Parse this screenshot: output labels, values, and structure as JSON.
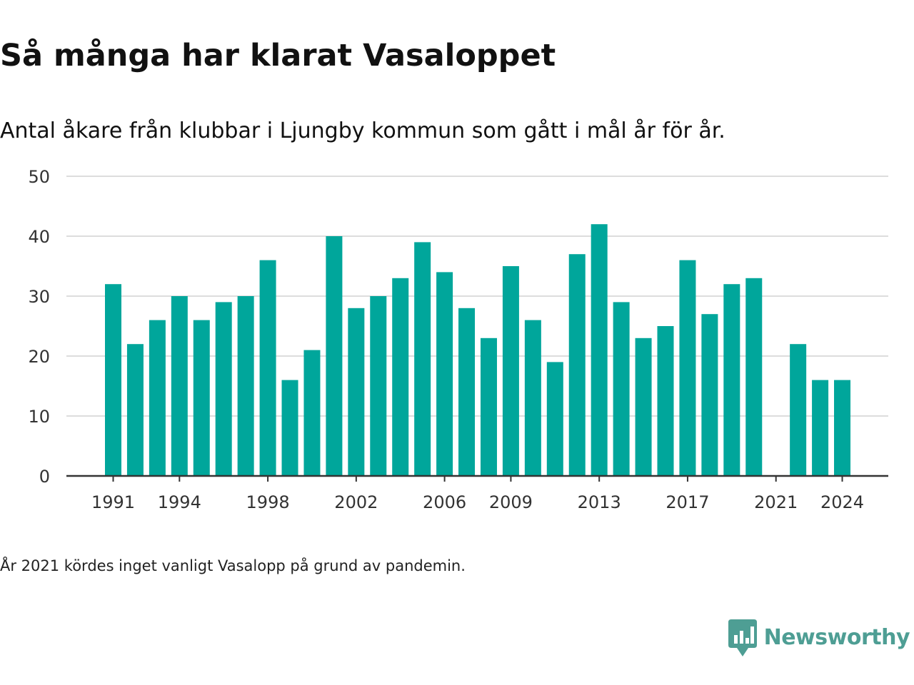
{
  "title": "Så många har klarat Vasaloppet",
  "subtitle": "Antal åkare från klubbar i Ljungby kommun som gått i mål år för år.",
  "footnote": "År 2021 kördes inget vanligt Vasalopp på grund av pandemin.",
  "brand": {
    "name": "Newsworthy",
    "icon": "newsworthy-logo",
    "color": "#4e9e94"
  },
  "colors": {
    "bar": "#00a69b",
    "grid": "#dddddd",
    "axis": "#333333",
    "text": "#333333"
  },
  "chart_data": {
    "type": "bar",
    "title": "",
    "xlabel": "",
    "ylabel": "",
    "ylim": [
      0,
      50
    ],
    "yticks": [
      0,
      10,
      20,
      30,
      40,
      50
    ],
    "xticks": [
      1991,
      1994,
      1998,
      2002,
      2006,
      2009,
      2013,
      2017,
      2021,
      2024
    ],
    "grid": true,
    "legend": "none",
    "categories": [
      1991,
      1992,
      1993,
      1994,
      1995,
      1996,
      1997,
      1998,
      1999,
      2000,
      2001,
      2002,
      2003,
      2004,
      2005,
      2006,
      2007,
      2008,
      2009,
      2010,
      2011,
      2012,
      2013,
      2014,
      2015,
      2016,
      2017,
      2018,
      2019,
      2020,
      2021,
      2022,
      2023,
      2024
    ],
    "values": [
      32,
      22,
      26,
      30,
      26,
      29,
      30,
      36,
      16,
      21,
      40,
      28,
      30,
      33,
      39,
      34,
      28,
      23,
      35,
      26,
      19,
      37,
      42,
      29,
      23,
      25,
      36,
      27,
      32,
      33,
      null,
      22,
      16,
      16
    ]
  }
}
